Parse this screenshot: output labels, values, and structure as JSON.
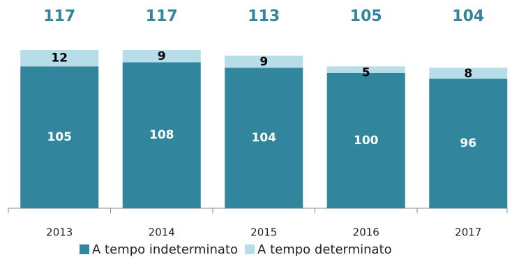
{
  "chart_data": {
    "type": "stacked_bar",
    "categories": [
      "2013",
      "2014",
      "2015",
      "2016",
      "2017"
    ],
    "series": [
      {
        "name": "A tempo indeterminato",
        "color": "#31859c",
        "values": [
          105,
          108,
          104,
          100,
          96
        ]
      },
      {
        "name": "A tempo determinato",
        "color": "#b7dde8",
        "values": [
          12,
          9,
          9,
          5,
          8
        ]
      }
    ],
    "totals": [
      117,
      117,
      113,
      105,
      104
    ],
    "ylim": [
      0,
      120
    ],
    "legend": "bottom"
  }
}
